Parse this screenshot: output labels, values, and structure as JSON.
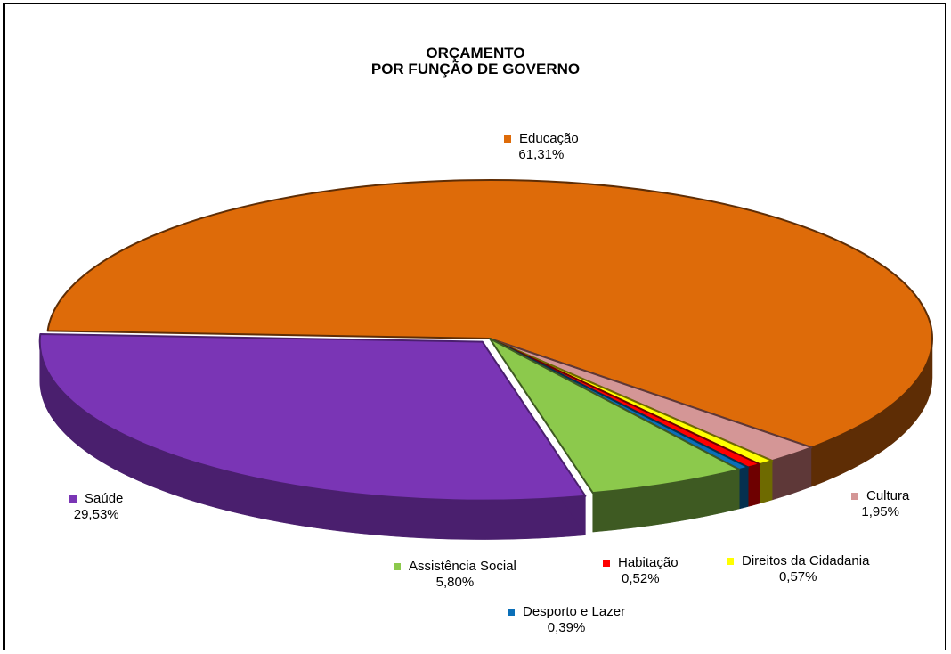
{
  "chart_data": {
    "type": "pie",
    "title": [
      "ORÇAMENTO",
      "POR FUNÇÃO DE GOVERNO"
    ],
    "slices": [
      {
        "name": "Educação",
        "value": 61.31,
        "label": "61,31%",
        "color": "#DE6B09",
        "side_color": "#5E2D05"
      },
      {
        "name": "Cultura",
        "value": 1.95,
        "label": "1,95%",
        "color": "#D49696",
        "side_color": "#5E3838"
      },
      {
        "name": "Direitos da Cidadania",
        "value": 0.57,
        "label": "0,57%",
        "color": "#FFFF00",
        "side_color": "#6E6A00"
      },
      {
        "name": "Habitação",
        "value": 0.52,
        "label": "0,52%",
        "color": "#FF0000",
        "side_color": "#6E0000"
      },
      {
        "name": "Desporto e Lazer",
        "value": 0.39,
        "label": "0,39%",
        "color": "#0A6FB8",
        "side_color": "#05304F"
      },
      {
        "name": "Assistência Social",
        "value": 5.8,
        "label": "5,80%",
        "color": "#8CC94C",
        "side_color": "#3E5A22"
      },
      {
        "name": "Saúde",
        "value": 29.53,
        "label": "29,53%",
        "color": "#7A35B5",
        "side_color": "#4A1F6E"
      }
    ],
    "style": "3d-exploded-pie",
    "legend": "labels-beside-slices"
  }
}
